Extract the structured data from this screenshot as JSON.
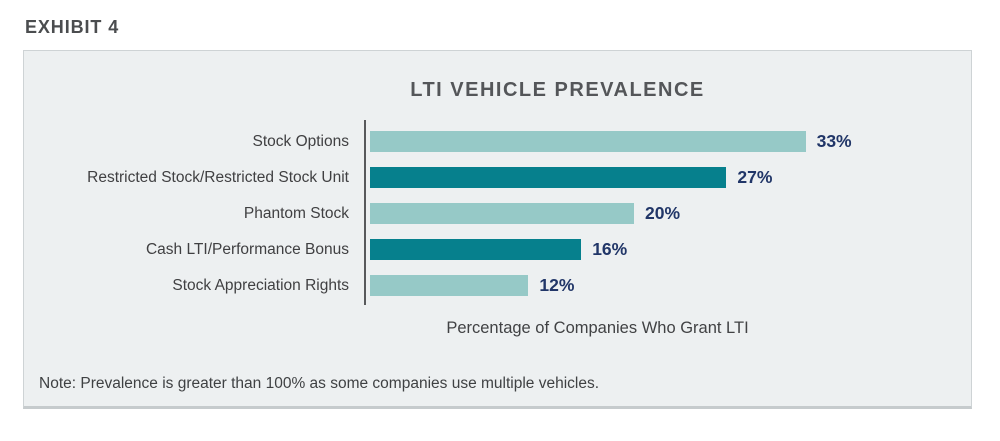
{
  "exhibit_label": "EXHIBIT 4",
  "note": "Note: Prevalence is greater than 100% as some companies use multiple vehicles.",
  "colors": {
    "panel_background": "#edf0f1",
    "panel_border": "#ced3d5",
    "light_teal_bar": "#96c9c7",
    "dark_teal_bar": "#06808d",
    "value_label_navy": "#213668",
    "axis_line_gray": "#58595b",
    "text_gray": "#404042"
  },
  "chart_data": {
    "type": "bar",
    "orientation": "horizontal",
    "title": "LTI VEHICLE PREVALENCE",
    "xlabel": "Percentage of Companies Who Grant LTI",
    "ylabel": "",
    "categories": [
      "Stock Options",
      "Restricted Stock/Restricted Stock Unit",
      "Phantom Stock",
      "Cash LTI/Performance Bonus",
      "Stock Appreciation Rights"
    ],
    "values": [
      33,
      27,
      20,
      16,
      12
    ],
    "value_labels": [
      "33%",
      "27%",
      "20%",
      "16%",
      "12%"
    ],
    "bar_colors": [
      "#96c9c7",
      "#06808d",
      "#96c9c7",
      "#06808d",
      "#96c9c7"
    ],
    "xlim": [
      0,
      40
    ],
    "grid": false,
    "legend": false,
    "data_labels_position": "end-of-bar"
  }
}
